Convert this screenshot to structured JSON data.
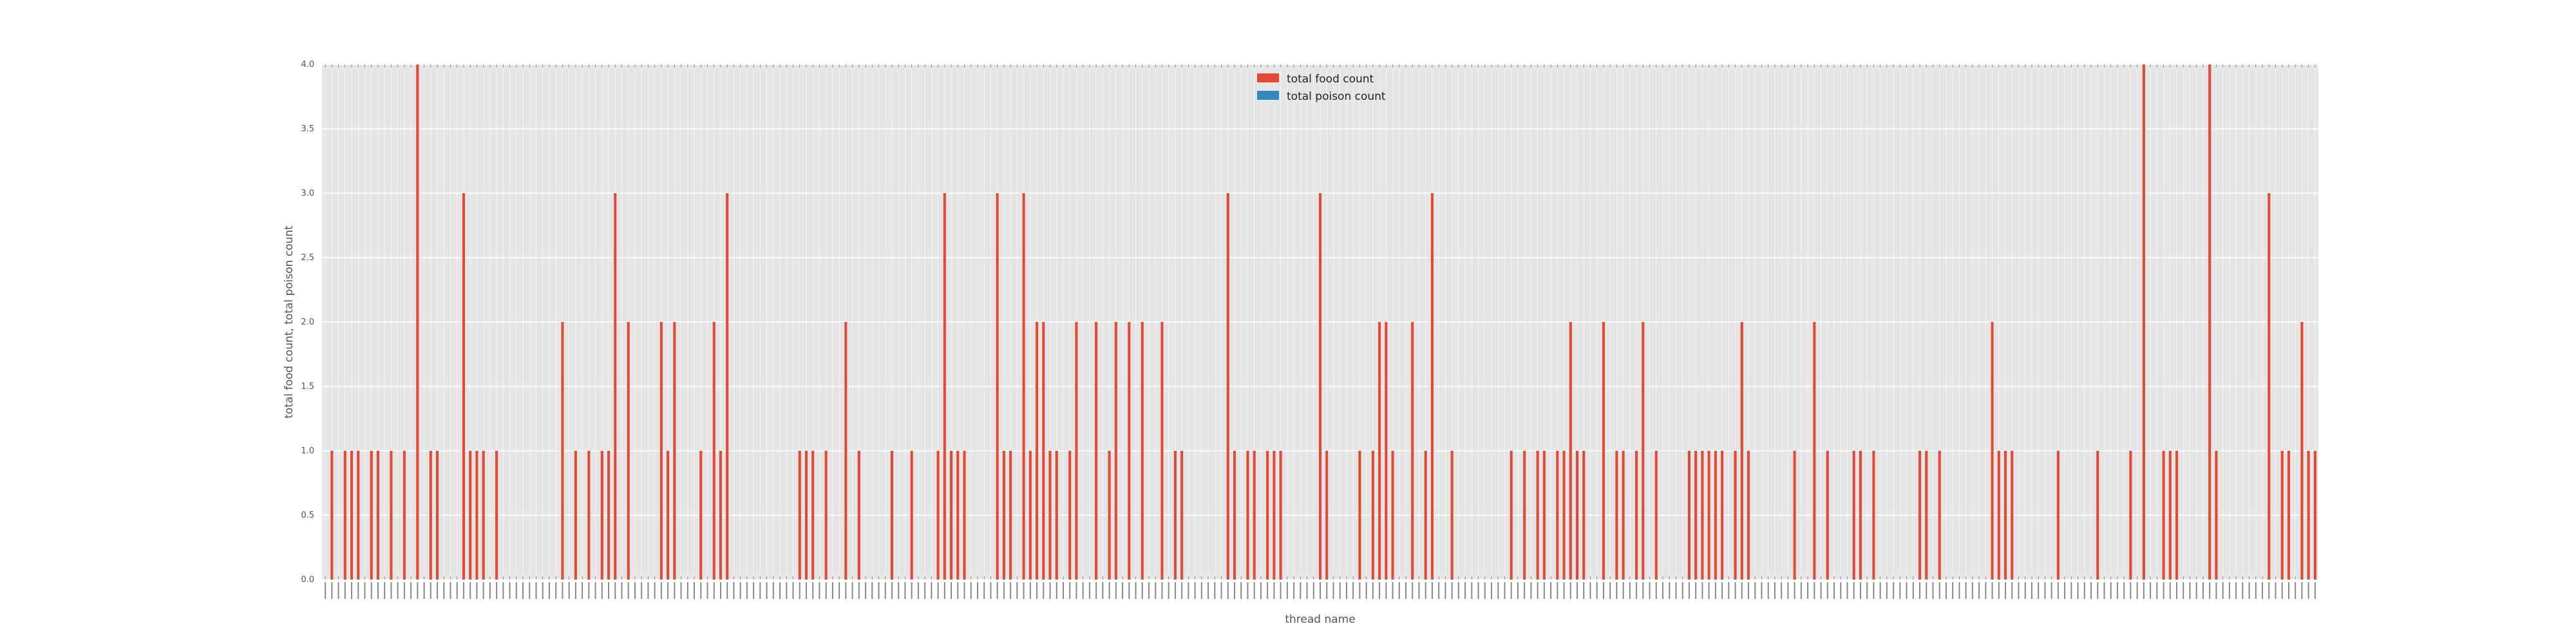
{
  "chart_data": {
    "type": "bar",
    "title": "",
    "xlabel": "thread name",
    "ylabel": "total food count, total poison count",
    "ylim": [
      0,
      4
    ],
    "yticks": [
      "0.0",
      "0.5",
      "1.0",
      "1.5",
      "2.0",
      "2.5",
      "3.0",
      "3.5",
      "4.0"
    ],
    "grid": true,
    "legend_position": "top-center",
    "series": [
      {
        "name": "total food count",
        "color": "#e24a33",
        "values": [
          0,
          1,
          0,
          1,
          1,
          1,
          0,
          1,
          1,
          0,
          1,
          0,
          1,
          0,
          4,
          0,
          1,
          1,
          0,
          0,
          0,
          3,
          1,
          1,
          1,
          0,
          1,
          0,
          0,
          0,
          0,
          0,
          0,
          0,
          0,
          0,
          2,
          0,
          1,
          0,
          1,
          0,
          1,
          1,
          3,
          0,
          2,
          0,
          0,
          0,
          0,
          2,
          1,
          2,
          0,
          0,
          0,
          1,
          0,
          2,
          1,
          3,
          0,
          0,
          0,
          0,
          0,
          0,
          0,
          0,
          0,
          0,
          1,
          1,
          1,
          0,
          1,
          0,
          0,
          2,
          0,
          1,
          0,
          0,
          0,
          0,
          1,
          0,
          0,
          1,
          0,
          0,
          0,
          1,
          3,
          1,
          1,
          1,
          0,
          0,
          0,
          0,
          3,
          1,
          1,
          0,
          3,
          1,
          2,
          2,
          1,
          1,
          0,
          1,
          2,
          0,
          0,
          2,
          0,
          1,
          2,
          0,
          2,
          0,
          2,
          0,
          0,
          2,
          0,
          1,
          1,
          0,
          0,
          0,
          0,
          0,
          0,
          3,
          1,
          0,
          1,
          1,
          0,
          1,
          1,
          1,
          0,
          0,
          0,
          0,
          0,
          3,
          1,
          0,
          0,
          0,
          0,
          1,
          0,
          1,
          2,
          2,
          1,
          0,
          0,
          2,
          0,
          1,
          3,
          0,
          0,
          1,
          0,
          0,
          0,
          0,
          0,
          0,
          0,
          0,
          1,
          0,
          1,
          0,
          1,
          1,
          0,
          1,
          1,
          2,
          1,
          1,
          0,
          0,
          2,
          0,
          1,
          1,
          0,
          1,
          2,
          0,
          1,
          0,
          0,
          0,
          0,
          1,
          1,
          1,
          1,
          1,
          1,
          0,
          1,
          2,
          1,
          0,
          0,
          0,
          0,
          0,
          0,
          1,
          0,
          0,
          2,
          0,
          1,
          0,
          0,
          0,
          1,
          1,
          0,
          1,
          0,
          0,
          0,
          0,
          0,
          0,
          1,
          1,
          0,
          1,
          0,
          0,
          0,
          0,
          0,
          0,
          0,
          2,
          1,
          1,
          1,
          0,
          0,
          0,
          0,
          0,
          0,
          1,
          0,
          0,
          0,
          0,
          0,
          1,
          0,
          0,
          0,
          0,
          1,
          0,
          4,
          0,
          0,
          1,
          1,
          1,
          0,
          0,
          0,
          0,
          4,
          1,
          0,
          0,
          0,
          0,
          0,
          0,
          0,
          3,
          0,
          1,
          1,
          0,
          2,
          1,
          1
        ]
      },
      {
        "name": "total poison count",
        "color": "#348abd",
        "values": []
      }
    ]
  }
}
